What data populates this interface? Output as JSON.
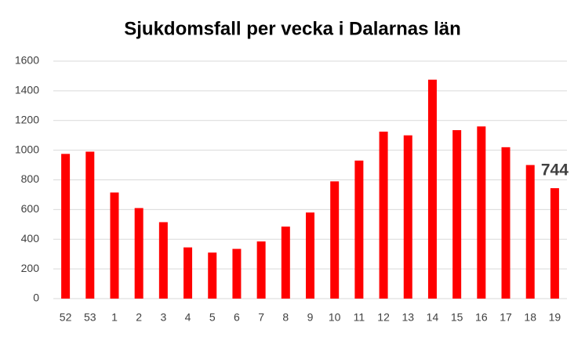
{
  "chart_data": {
    "type": "bar",
    "title": "Sjukdomsfall per vecka i Dalarnas län",
    "categories": [
      "52",
      "53",
      "1",
      "2",
      "3",
      "4",
      "5",
      "6",
      "7",
      "8",
      "9",
      "10",
      "11",
      "12",
      "13",
      "14",
      "15",
      "16",
      "17",
      "18",
      "19"
    ],
    "values": [
      975,
      990,
      715,
      610,
      515,
      345,
      310,
      335,
      385,
      485,
      580,
      790,
      930,
      1125,
      1100,
      1475,
      1135,
      1160,
      1020,
      900,
      744
    ],
    "value_labels": [
      null,
      null,
      null,
      null,
      null,
      null,
      null,
      null,
      null,
      null,
      null,
      null,
      null,
      null,
      null,
      null,
      null,
      null,
      null,
      null,
      "744"
    ],
    "color": "#ff0000",
    "ylim": [
      0,
      1600
    ],
    "yticks": [
      0,
      200,
      400,
      600,
      800,
      1000,
      1200,
      1400,
      1600
    ],
    "grid": true
  }
}
